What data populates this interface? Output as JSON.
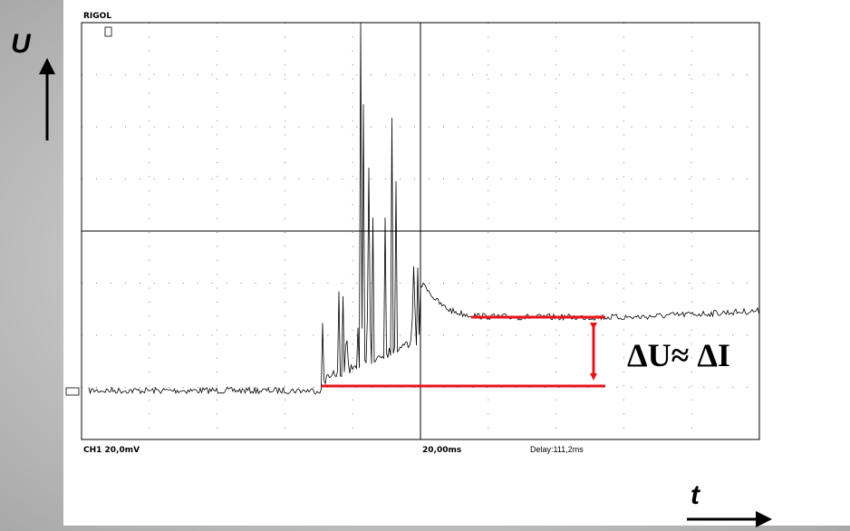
{
  "axes": {
    "y_label": "U",
    "x_label": "t"
  },
  "scope": {
    "brand": "RIGOL",
    "channel": "CH1 20,0mV",
    "timebase": "20,00ms",
    "delay": "Delay:111,2ms"
  },
  "annotation": "ΔU≈ ΔI"
}
